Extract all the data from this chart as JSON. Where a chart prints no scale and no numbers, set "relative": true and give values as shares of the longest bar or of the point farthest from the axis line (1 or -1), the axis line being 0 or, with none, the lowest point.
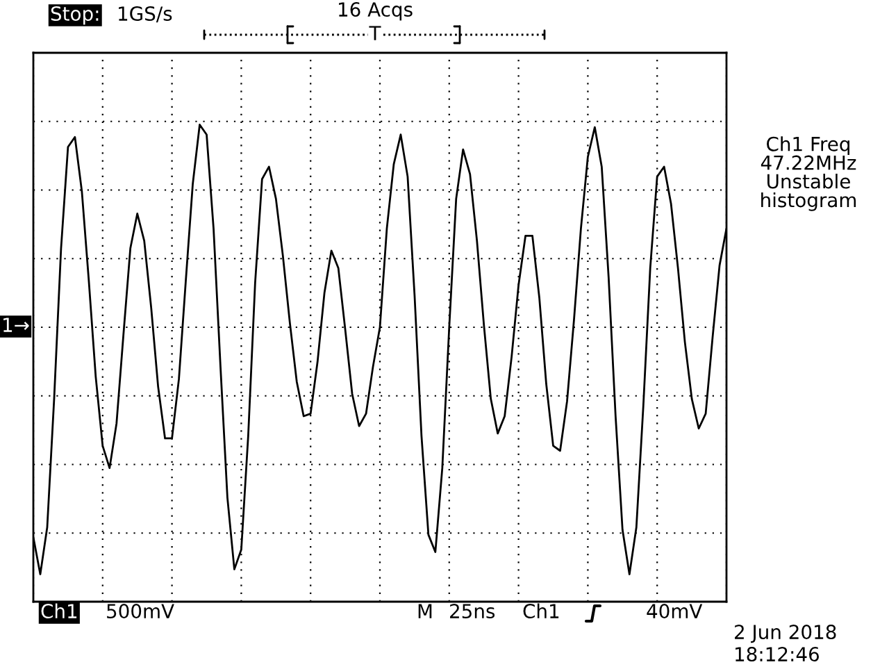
{
  "chart_data": {
    "type": "line",
    "relative": true,
    "grid": true,
    "tick_labels": false,
    "categories": [
      null,
      null,
      null,
      null,
      null,
      null,
      null,
      null,
      null,
      null,
      null,
      null,
      null,
      null,
      null,
      null,
      null,
      null,
      null,
      null,
      null,
      null,
      null,
      null,
      null,
      null,
      null,
      null,
      null,
      null,
      null,
      null,
      null,
      null,
      null,
      null,
      null,
      null,
      null,
      null,
      null,
      null,
      null,
      null,
      null,
      null,
      null,
      null,
      null,
      null,
      null,
      null,
      null,
      null,
      null,
      null,
      null,
      null,
      null,
      null,
      null,
      null,
      null,
      null,
      null,
      null,
      null,
      null,
      null,
      null,
      null,
      null,
      null,
      null,
      null,
      null,
      null,
      null,
      null,
      null,
      null,
      null,
      null,
      null,
      null,
      null,
      null,
      null,
      null,
      null,
      null,
      null,
      null,
      null,
      null,
      null,
      null,
      null,
      null,
      null,
      null
    ],
    "series": [
      {
        "color": "#000000",
        "values": [
          -0.85,
          -1.0,
          -0.81,
          -0.29,
          0.32,
          0.73,
          0.77,
          0.55,
          0.19,
          -0.2,
          -0.48,
          -0.57,
          -0.39,
          -0.03,
          0.32,
          0.46,
          0.35,
          0.08,
          -0.24,
          -0.45,
          -0.45,
          -0.21,
          0.19,
          0.58,
          0.82,
          0.78,
          0.4,
          -0.16,
          -0.69,
          -0.98,
          -0.9,
          -0.44,
          0.18,
          0.6,
          0.65,
          0.52,
          0.29,
          0.02,
          -0.22,
          -0.36,
          -0.35,
          -0.14,
          0.14,
          0.31,
          0.24,
          -0.01,
          -0.27,
          -0.4,
          -0.35,
          -0.16,
          0.0,
          0.4,
          0.66,
          0.78,
          0.61,
          0.13,
          -0.44,
          -0.84,
          -0.91,
          -0.57,
          0.0,
          0.52,
          0.72,
          0.62,
          0.35,
          0.01,
          -0.29,
          -0.43,
          -0.36,
          -0.12,
          0.17,
          0.37,
          0.37,
          0.12,
          -0.23,
          -0.48,
          -0.5,
          -0.3,
          0.03,
          0.4,
          0.69,
          0.81,
          0.65,
          0.2,
          -0.36,
          -0.82,
          -1.0,
          -0.81,
          -0.32,
          0.24,
          0.61,
          0.65,
          0.5,
          0.24,
          -0.06,
          -0.29,
          -0.41,
          -0.35,
          -0.04,
          0.25,
          0.4
        ]
      }
    ],
    "annotations": [
      "Stop:",
      "1GS/s",
      "16 Acqs",
      "T",
      "Ch1 Freq\n47.22MHz\nUnstable\nhistogram",
      "1→",
      "Ch1",
      "500mV",
      "M",
      "25ns",
      "Ch1",
      "40mV",
      "2 Jun 2018",
      "18:12:46"
    ]
  }
}
